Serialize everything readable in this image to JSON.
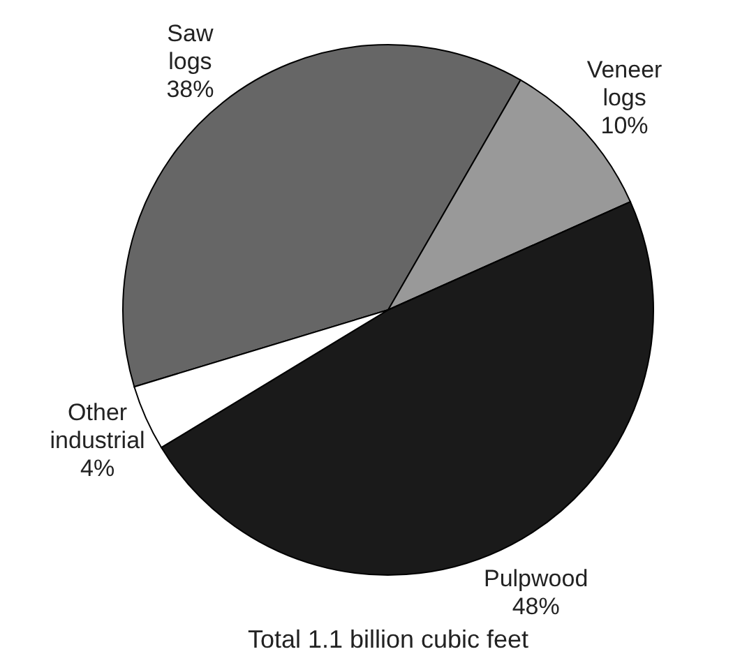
{
  "chart_data": {
    "type": "pie",
    "title": "Total 1.1 billion cubic feet",
    "categories": [
      "Saw logs",
      "Veneer logs",
      "Pulpwood",
      "Other industrial"
    ],
    "values": [
      38,
      10,
      48,
      4
    ],
    "value_labels": [
      "38%",
      "10%",
      "48%",
      "4%"
    ],
    "colors": [
      "#666666",
      "#999999",
      "#1a1a1a",
      "#ffffff"
    ]
  }
}
